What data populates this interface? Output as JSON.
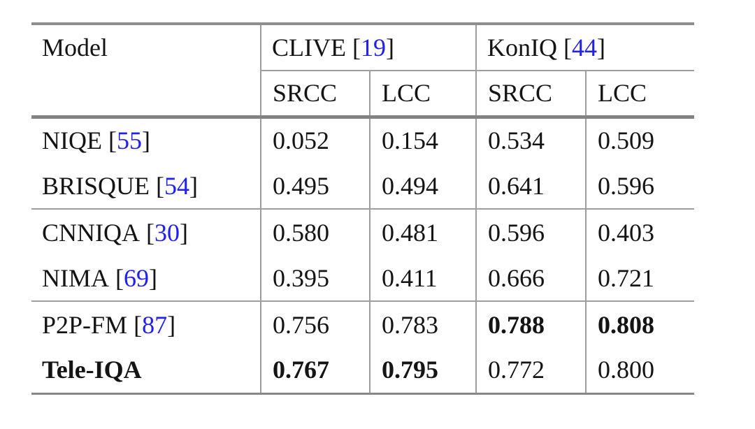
{
  "colors": {
    "citation_blue": "#2121ef",
    "rule_gray": "#8d8d8d",
    "text_black": "#141414",
    "background": "#ffffff"
  },
  "table": {
    "cite_open": "[",
    "cite_close": "]",
    "header": {
      "model_label": "Model",
      "group_clive": {
        "name": "CLIVE",
        "cite_num": "19"
      },
      "group_koniq": {
        "name": "KonIQ",
        "cite_num": "44"
      },
      "sub": {
        "clive_srcc": "SRCC",
        "clive_lcc": "LCC",
        "koniq_srcc": "SRCC",
        "koniq_lcc": "LCC"
      }
    },
    "rows": [
      {
        "name": "NIQE",
        "cite_num": "55",
        "clive_srcc": "0.052",
        "clive_lcc": "0.154",
        "koniq_srcc": "0.534",
        "koniq_lcc": "0.509",
        "bold_cells": []
      },
      {
        "name": "BRISQUE",
        "cite_num": "54",
        "clive_srcc": "0.495",
        "clive_lcc": "0.494",
        "koniq_srcc": "0.641",
        "koniq_lcc": "0.596",
        "bold_cells": []
      },
      {
        "name": "CNNIQA",
        "cite_num": "30",
        "clive_srcc": "0.580",
        "clive_lcc": "0.481",
        "koniq_srcc": "0.596",
        "koniq_lcc": "0.403",
        "bold_cells": []
      },
      {
        "name": "NIMA",
        "cite_num": "69",
        "clive_srcc": "0.395",
        "clive_lcc": "0.411",
        "koniq_srcc": "0.666",
        "koniq_lcc": "0.721",
        "bold_cells": []
      },
      {
        "name": "P2P-FM",
        "cite_num": "87",
        "clive_srcc": "0.756",
        "clive_lcc": "0.783",
        "koniq_srcc": "0.788",
        "koniq_lcc": "0.808",
        "bold_cells": [
          "koniq_srcc",
          "koniq_lcc"
        ]
      },
      {
        "name": "Tele-IQA",
        "clive_srcc": "0.767",
        "clive_lcc": "0.795",
        "koniq_srcc": "0.772",
        "koniq_lcc": "0.800",
        "bold_cells": [
          "name",
          "clive_srcc",
          "clive_lcc"
        ]
      }
    ]
  }
}
